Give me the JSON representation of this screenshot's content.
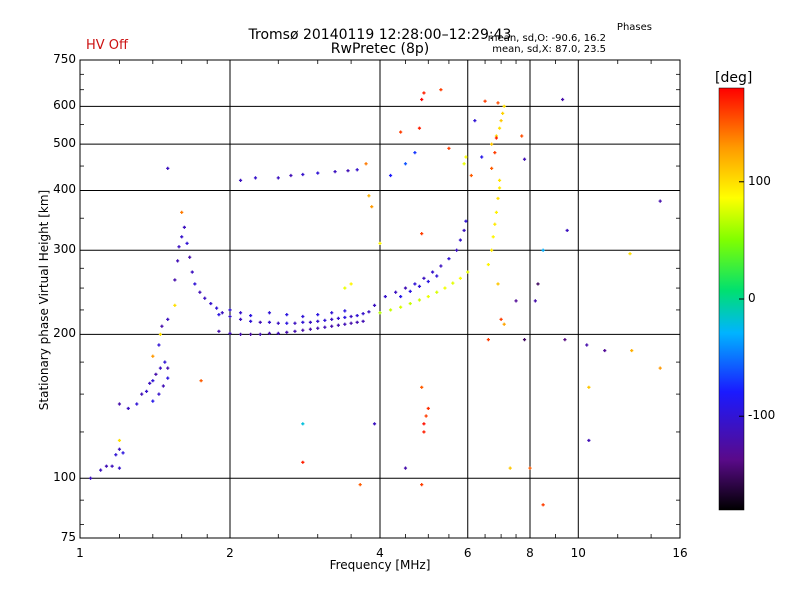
{
  "chart_data": {
    "type": "scatter",
    "title": "Tromsø 20140119 12:28:00–12:29:43",
    "subtitle": "RwPretec (8p)",
    "status": "HV Off",
    "phases": {
      "title": "Phases",
      "line1": "mean, sd,O: -90.6, 16.2",
      "line2": "mean, sd,X:  87.0, 23.5"
    },
    "xlabel": "Frequency [MHz]",
    "ylabel": "Stationary phase Virtual Height [km]",
    "x_scale": "log",
    "y_scale": "log",
    "xlim": [
      1,
      16
    ],
    "ylim": [
      75,
      750
    ],
    "x_ticks": [
      1,
      2,
      4,
      6,
      8,
      10,
      16
    ],
    "x_tick_labels": [
      "1",
      "2",
      "4",
      "6",
      "8",
      "10",
      "16"
    ],
    "y_ticks": [
      75,
      100,
      200,
      300,
      400,
      500,
      600,
      750
    ],
    "y_tick_labels": [
      "75",
      "100",
      "200",
      "300",
      "400",
      "500",
      "600",
      "750"
    ],
    "grid": true,
    "colorbar": {
      "title": "[deg]",
      "range": [
        -180,
        180
      ],
      "ticks": [
        100,
        0,
        -100
      ],
      "tick_labels": [
        "100",
        "0",
        "-100"
      ]
    },
    "points_note_series": [
      {
        "name": "O",
        "points": [
          [
            1.05,
            100,
            -110
          ],
          [
            1.1,
            104,
            -110
          ],
          [
            1.13,
            106,
            -115
          ],
          [
            1.16,
            106,
            -112
          ],
          [
            1.2,
            105,
            -105
          ],
          [
            1.18,
            112,
            -100
          ],
          [
            1.2,
            115,
            -110
          ],
          [
            1.22,
            113,
            -95
          ],
          [
            1.2,
            143,
            -120
          ],
          [
            1.25,
            140,
            -110
          ],
          [
            1.3,
            143,
            -100
          ],
          [
            1.33,
            150,
            -115
          ],
          [
            1.36,
            152,
            -105
          ],
          [
            1.38,
            158,
            -110
          ],
          [
            1.4,
            160,
            -100
          ],
          [
            1.42,
            165,
            -120
          ],
          [
            1.45,
            170,
            -110
          ],
          [
            1.48,
            175,
            -100
          ],
          [
            1.4,
            145,
            -90
          ],
          [
            1.44,
            150,
            -105
          ],
          [
            1.47,
            156,
            -115
          ],
          [
            1.5,
            162,
            -95
          ],
          [
            1.44,
            190,
            -100
          ],
          [
            1.46,
            208,
            -120
          ],
          [
            1.5,
            215,
            -110
          ],
          [
            1.55,
            260,
            -120
          ],
          [
            1.57,
            285,
            -115
          ],
          [
            1.58,
            305,
            -110
          ],
          [
            1.6,
            320,
            -105
          ],
          [
            1.62,
            335,
            -110
          ],
          [
            1.64,
            310,
            -100
          ],
          [
            1.66,
            290,
            -120
          ],
          [
            1.68,
            270,
            -110
          ],
          [
            1.7,
            255,
            -100
          ],
          [
            1.74,
            245,
            -115
          ],
          [
            1.78,
            238,
            -110
          ],
          [
            1.83,
            232,
            -105
          ],
          [
            1.88,
            227,
            -100
          ],
          [
            1.93,
            222,
            -110
          ],
          [
            2.0,
            218,
            -105
          ],
          [
            2.1,
            215,
            -110
          ],
          [
            2.2,
            213,
            -100
          ],
          [
            2.3,
            212,
            -115
          ],
          [
            2.4,
            212,
            -105
          ],
          [
            2.5,
            211,
            -110
          ],
          [
            2.6,
            211,
            -95
          ],
          [
            2.7,
            211,
            -110
          ],
          [
            2.8,
            212,
            -100
          ],
          [
            2.9,
            212,
            -110
          ],
          [
            3.0,
            213,
            -105
          ],
          [
            3.1,
            214,
            -100
          ],
          [
            3.2,
            215,
            -110
          ],
          [
            3.3,
            216,
            -105
          ],
          [
            3.4,
            217,
            -95
          ],
          [
            3.5,
            218,
            -110
          ],
          [
            3.6,
            219,
            -100
          ],
          [
            3.7,
            221,
            -105
          ],
          [
            3.8,
            223,
            -110
          ],
          [
            1.9,
            203,
            -120
          ],
          [
            2.0,
            201,
            -115
          ],
          [
            2.1,
            200,
            -120
          ],
          [
            2.2,
            200,
            -125
          ],
          [
            2.3,
            200,
            -118
          ],
          [
            2.4,
            201,
            -120
          ],
          [
            2.5,
            201,
            -115
          ],
          [
            2.6,
            202,
            -120
          ],
          [
            2.7,
            203,
            -118
          ],
          [
            2.8,
            204,
            -122
          ],
          [
            2.9,
            205,
            -120
          ],
          [
            3.0,
            206,
            -118
          ],
          [
            3.1,
            207,
            -115
          ],
          [
            3.2,
            208,
            -120
          ],
          [
            3.3,
            209,
            -118
          ],
          [
            3.4,
            210,
            -115
          ],
          [
            3.5,
            211,
            -120
          ],
          [
            3.6,
            212,
            -118
          ],
          [
            3.7,
            213,
            -116
          ],
          [
            1.9,
            220,
            -95
          ],
          [
            2.0,
            225,
            -100
          ],
          [
            2.1,
            222,
            -105
          ],
          [
            2.2,
            219,
            -95
          ],
          [
            2.4,
            222,
            -100
          ],
          [
            2.6,
            220,
            -95
          ],
          [
            2.8,
            218,
            -100
          ],
          [
            3.0,
            220,
            -95
          ],
          [
            3.2,
            222,
            -100
          ],
          [
            3.4,
            224,
            -95
          ],
          [
            3.9,
            230,
            -110
          ],
          [
            4.1,
            240,
            -105
          ],
          [
            4.3,
            245,
            -110
          ],
          [
            4.5,
            250,
            -115
          ],
          [
            4.7,
            255,
            -100
          ],
          [
            4.9,
            262,
            -110
          ],
          [
            5.1,
            270,
            -105
          ],
          [
            5.3,
            278,
            -110
          ],
          [
            5.5,
            288,
            -100
          ],
          [
            5.7,
            300,
            -110
          ],
          [
            5.8,
            315,
            -105
          ],
          [
            5.9,
            330,
            -110
          ],
          [
            5.95,
            345,
            -100
          ],
          [
            4.4,
            240,
            -90
          ],
          [
            4.6,
            246,
            -95
          ],
          [
            4.8,
            252,
            -100
          ],
          [
            5.0,
            258,
            -95
          ],
          [
            5.2,
            265,
            -100
          ],
          [
            2.1,
            420,
            -110
          ],
          [
            2.25,
            425,
            -105
          ],
          [
            2.5,
            425,
            -110
          ],
          [
            2.65,
            430,
            -115
          ],
          [
            2.8,
            432,
            -105
          ],
          [
            3.0,
            435,
            -100
          ],
          [
            3.25,
            438,
            -110
          ],
          [
            3.45,
            440,
            -115
          ],
          [
            3.6,
            442,
            -105
          ],
          [
            1.5,
            445,
            -110
          ],
          [
            1.5,
            170,
            -120
          ],
          [
            2.8,
            130,
            -20
          ],
          [
            3.9,
            130,
            -110
          ],
          [
            4.5,
            105,
            -120
          ],
          [
            6.2,
            560,
            -100
          ],
          [
            6.4,
            470,
            -90
          ],
          [
            7.8,
            465,
            -115
          ],
          [
            8.5,
            300,
            -30
          ],
          [
            9.5,
            330,
            -110
          ],
          [
            9.3,
            620,
            -120
          ],
          [
            10.4,
            190,
            -120
          ],
          [
            11.3,
            185,
            -130
          ],
          [
            8.2,
            235,
            -120
          ],
          [
            8.3,
            255,
            -150
          ],
          [
            7.8,
            195,
            -150
          ],
          [
            7.5,
            235,
            -130
          ],
          [
            10.5,
            120,
            -115
          ],
          [
            9.4,
            195,
            -140
          ],
          [
            14.6,
            380,
            -120
          ],
          [
            4.2,
            430,
            -80
          ],
          [
            4.5,
            455,
            -60
          ],
          [
            4.7,
            480,
            -70
          ]
        ]
      },
      {
        "name": "X",
        "points": [
          [
            4.0,
            222,
            65
          ],
          [
            4.2,
            225,
            70
          ],
          [
            4.4,
            228,
            75
          ],
          [
            4.6,
            232,
            70
          ],
          [
            4.8,
            236,
            72
          ],
          [
            5.0,
            240,
            80
          ],
          [
            5.2,
            245,
            75
          ],
          [
            5.4,
            250,
            82
          ],
          [
            5.6,
            256,
            78
          ],
          [
            5.8,
            262,
            85
          ],
          [
            6.0,
            270,
            80
          ],
          [
            6.6,
            280,
            90
          ],
          [
            6.7,
            300,
            95
          ],
          [
            6.75,
            320,
            90
          ],
          [
            6.8,
            340,
            95
          ],
          [
            6.85,
            360,
            92
          ],
          [
            6.9,
            385,
            100
          ],
          [
            6.95,
            405,
            95
          ],
          [
            6.95,
            420,
            98
          ],
          [
            6.85,
            520,
            105
          ],
          [
            6.95,
            540,
            100
          ],
          [
            7.0,
            560,
            110
          ],
          [
            7.05,
            580,
            105
          ],
          [
            7.1,
            600,
            100
          ],
          [
            5.9,
            455,
            80
          ],
          [
            5.95,
            470,
            85
          ],
          [
            6.7,
            500,
            110
          ],
          [
            1.6,
            360,
            140
          ],
          [
            1.55,
            230,
            100
          ],
          [
            1.45,
            200,
            100
          ],
          [
            3.4,
            250,
            80
          ],
          [
            3.5,
            255,
            90
          ],
          [
            4.0,
            310,
            90
          ],
          [
            3.85,
            370,
            130
          ],
          [
            3.8,
            390,
            120
          ],
          [
            3.75,
            455,
            140
          ],
          [
            5.5,
            490,
            160
          ],
          [
            6.8,
            480,
            160
          ],
          [
            6.85,
            515,
            170
          ],
          [
            6.1,
            430,
            150
          ],
          [
            6.7,
            445,
            150
          ],
          [
            6.9,
            255,
            110
          ],
          [
            5.3,
            650,
            160
          ],
          [
            4.85,
            325,
            160
          ],
          [
            4.9,
            640,
            170
          ],
          [
            4.85,
            620,
            180
          ],
          [
            4.8,
            540,
            170
          ],
          [
            4.9,
            125,
            170
          ],
          [
            4.9,
            130,
            175
          ],
          [
            4.95,
            135,
            160
          ],
          [
            5.0,
            140,
            165
          ],
          [
            4.85,
            155,
            150
          ],
          [
            4.85,
            97,
            160
          ],
          [
            3.65,
            97,
            150
          ],
          [
            2.8,
            108,
            170
          ],
          [
            1.75,
            160,
            150
          ],
          [
            1.4,
            180,
            130
          ],
          [
            7.7,
            520,
            155
          ],
          [
            6.5,
            615,
            160
          ],
          [
            6.9,
            610,
            155
          ],
          [
            6.6,
            195,
            160
          ],
          [
            7.0,
            215,
            160
          ],
          [
            4.4,
            530,
            160
          ],
          [
            7.3,
            105,
            110
          ],
          [
            8.5,
            88,
            160
          ],
          [
            8.0,
            105,
            150
          ],
          [
            12.7,
            295,
            100
          ],
          [
            12.8,
            185,
            120
          ],
          [
            14.6,
            170,
            130
          ],
          [
            10.5,
            155,
            110
          ],
          [
            7.1,
            210,
            125
          ],
          [
            1.2,
            120,
            100
          ]
        ]
      }
    ]
  }
}
